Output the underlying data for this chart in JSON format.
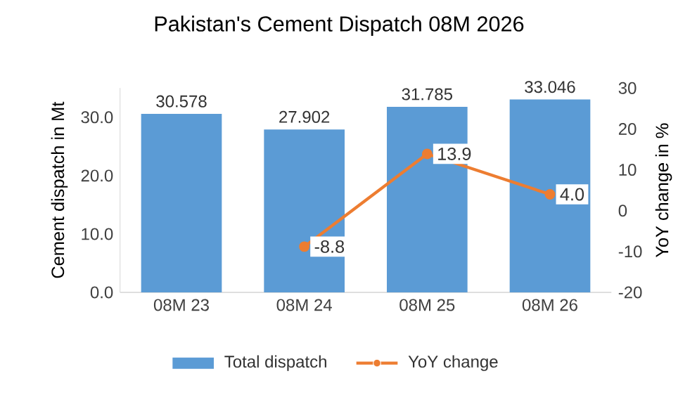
{
  "chart_data": {
    "type": "bar",
    "title": "Pakistan's Cement Dispatch 08M 2026",
    "categories": [
      "08M 23",
      "08M 24",
      "08M 25",
      "08M 26"
    ],
    "ylabel": "Cement dispatch in Mt",
    "y2label": "YoY change in %",
    "ylim": [
      0,
      35
    ],
    "yticks": [
      {
        "value": 0,
        "label": "0.0"
      },
      {
        "value": 10,
        "label": "10.0"
      },
      {
        "value": 20,
        "label": "20.0"
      },
      {
        "value": 30,
        "label": "30.0"
      }
    ],
    "y2lim": [
      -20,
      30
    ],
    "y2ticks": [
      -20,
      -10,
      0,
      10,
      20,
      30
    ],
    "legend": "bottom",
    "series": [
      {
        "name": "Total dispatch",
        "color": "#5b9bd5",
        "values": [
          30.578,
          27.902,
          31.785,
          33.046
        ],
        "value_labels": [
          "30.578",
          "27.902",
          "31.785",
          "33.046"
        ]
      },
      {
        "name": "YoY change",
        "type": "line",
        "axis": "y2",
        "color": "#ed7d31",
        "marker": "circle",
        "values": [
          null,
          -8.8,
          13.9,
          4.0
        ],
        "value_labels": [
          null,
          "-8.8",
          "13.9",
          "4.0"
        ]
      }
    ]
  }
}
